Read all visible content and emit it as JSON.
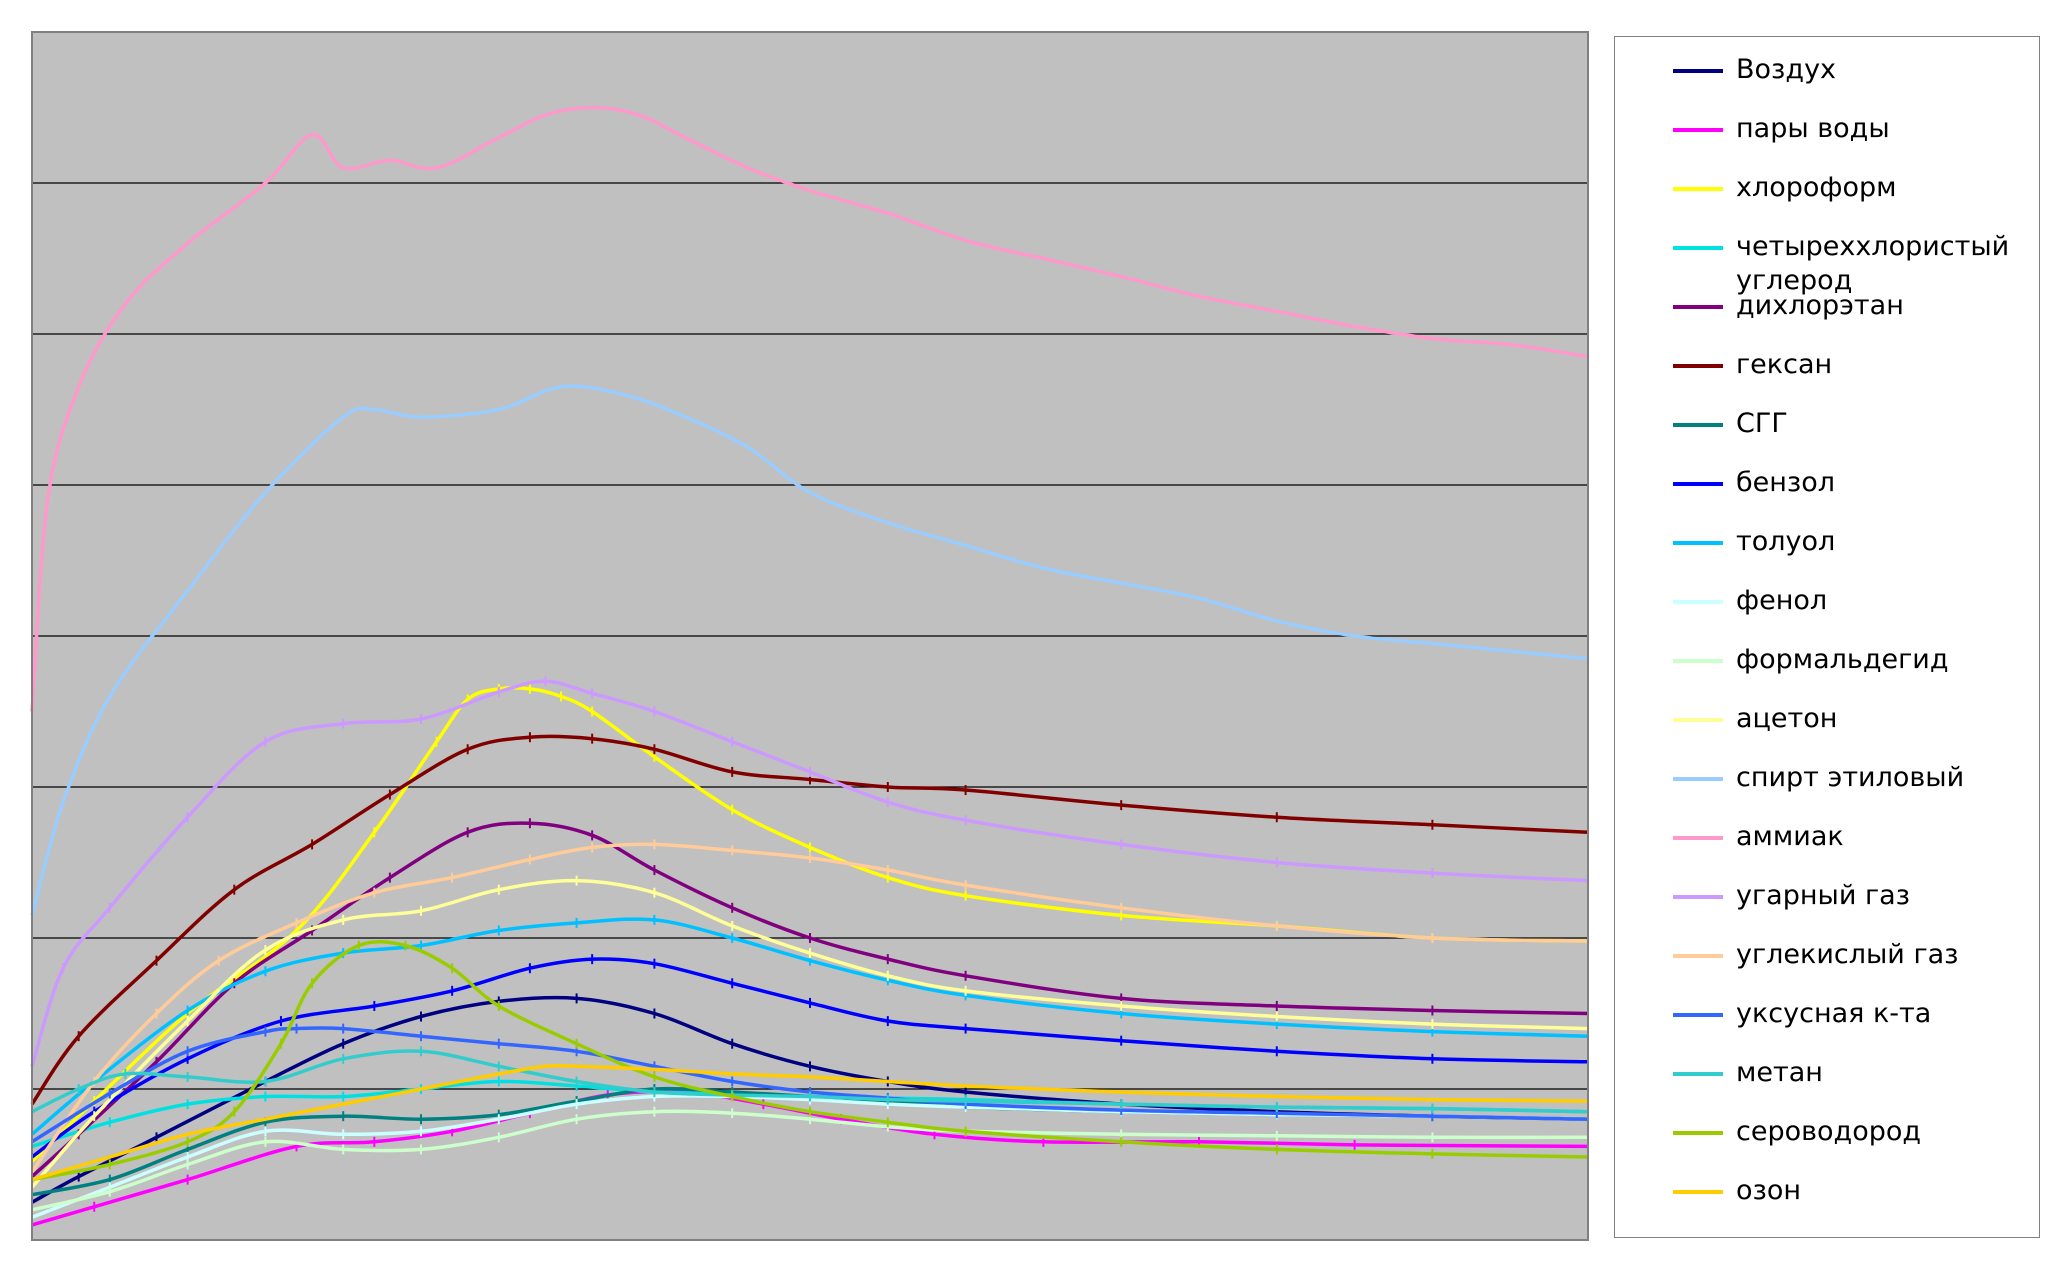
{
  "chart_data": {
    "type": "line",
    "title": "",
    "xlabel": "",
    "ylabel": "",
    "xlim": [
      0,
      100
    ],
    "ylim": [
      0,
      8
    ],
    "grid": true,
    "gridlines_y": [
      1,
      2,
      3,
      4,
      5,
      6,
      7
    ],
    "plot_background": "#c0c0c0",
    "axis_tick_labels_visible": false,
    "legend_position": "right",
    "series": [
      {
        "name": "Воздух",
        "color": "#000080",
        "markers": true,
        "x": [
          0,
          3,
          8,
          15,
          20,
          25,
          30,
          35,
          40,
          45,
          50,
          55,
          60,
          70,
          80,
          90,
          100
        ],
        "y": [
          0.25,
          0.42,
          0.68,
          1.05,
          1.3,
          1.48,
          1.58,
          1.6,
          1.5,
          1.3,
          1.15,
          1.05,
          0.98,
          0.9,
          0.85,
          0.82,
          0.8
        ]
      },
      {
        "name": "пары воды",
        "color": "#ff00ff",
        "markers": true,
        "x": [
          0,
          4,
          10,
          17,
          22,
          27,
          32,
          37,
          42,
          47,
          52,
          58,
          65,
          75,
          85,
          100
        ],
        "y": [
          0.1,
          0.22,
          0.4,
          0.62,
          0.65,
          0.72,
          0.84,
          0.96,
          0.98,
          0.9,
          0.8,
          0.7,
          0.65,
          0.65,
          0.63,
          0.62
        ]
      },
      {
        "name": "хлороформ",
        "color": "#ffff00",
        "markers": true,
        "x": [
          0,
          4,
          10,
          17,
          22,
          26,
          28,
          30,
          32,
          34,
          36,
          40,
          45,
          50,
          55,
          60,
          70,
          80,
          90,
          100
        ],
        "y": [
          0.52,
          0.92,
          1.5,
          2.05,
          2.7,
          3.3,
          3.58,
          3.65,
          3.65,
          3.6,
          3.5,
          3.2,
          2.85,
          2.6,
          2.4,
          2.28,
          2.15,
          2.08,
          2.0,
          1.98
        ]
      },
      {
        "name": "четыреххлористый углерод",
        "color": "#00e0e0",
        "markers": true,
        "x": [
          0,
          5,
          10,
          15,
          20,
          25,
          30,
          35,
          40,
          45,
          50,
          55,
          60,
          70,
          80,
          90,
          100
        ],
        "y": [
          0.62,
          0.78,
          0.9,
          0.95,
          0.95,
          1.0,
          1.05,
          1.02,
          0.98,
          0.97,
          0.95,
          0.94,
          0.93,
          0.9,
          0.88,
          0.87,
          0.85
        ]
      },
      {
        "name": "дихлорэтан",
        "color": "#800080",
        "markers": true,
        "x": [
          0,
          3,
          8,
          13,
          18,
          23,
          28,
          32,
          36,
          40,
          45,
          50,
          55,
          60,
          70,
          80,
          90,
          100
        ],
        "y": [
          0.42,
          0.7,
          1.18,
          1.7,
          2.05,
          2.4,
          2.7,
          2.76,
          2.68,
          2.45,
          2.2,
          2.0,
          1.86,
          1.75,
          1.6,
          1.55,
          1.52,
          1.5
        ]
      },
      {
        "name": "гексан",
        "color": "#800000",
        "markers": true,
        "x": [
          0,
          3,
          8,
          13,
          18,
          23,
          28,
          32,
          36,
          40,
          45,
          50,
          55,
          60,
          70,
          80,
          90,
          100
        ],
        "y": [
          0.9,
          1.35,
          1.85,
          2.32,
          2.62,
          2.95,
          3.25,
          3.33,
          3.32,
          3.25,
          3.1,
          3.05,
          3.0,
          2.98,
          2.88,
          2.8,
          2.75,
          2.7
        ]
      },
      {
        "name": "СГГ",
        "color": "#008080",
        "markers": true,
        "x": [
          0,
          5,
          10,
          15,
          20,
          25,
          30,
          35,
          40,
          45,
          50,
          55,
          60,
          70,
          80,
          90,
          100
        ],
        "y": [
          0.3,
          0.4,
          0.6,
          0.78,
          0.82,
          0.8,
          0.83,
          0.92,
          1.0,
          0.98,
          0.95,
          0.92,
          0.88,
          0.85,
          0.83,
          0.82,
          0.8
        ]
      },
      {
        "name": "бензол",
        "color": "#0000ff",
        "markers": true,
        "x": [
          0,
          4,
          10,
          16,
          22,
          27,
          32,
          36,
          40,
          45,
          50,
          55,
          60,
          70,
          80,
          90,
          100
        ],
        "y": [
          0.55,
          0.85,
          1.2,
          1.45,
          1.55,
          1.65,
          1.8,
          1.86,
          1.83,
          1.7,
          1.57,
          1.45,
          1.4,
          1.32,
          1.25,
          1.2,
          1.18
        ]
      },
      {
        "name": "толуол",
        "color": "#00c0ff",
        "markers": true,
        "x": [
          0,
          4,
          10,
          15,
          20,
          25,
          30,
          35,
          40,
          45,
          50,
          55,
          60,
          70,
          80,
          90,
          100
        ],
        "y": [
          0.7,
          1.05,
          1.52,
          1.78,
          1.9,
          1.95,
          2.05,
          2.1,
          2.12,
          2.0,
          1.85,
          1.72,
          1.62,
          1.5,
          1.43,
          1.38,
          1.35
        ]
      },
      {
        "name": "фенол",
        "color": "#ccffff",
        "markers": true,
        "x": [
          0,
          5,
          10,
          15,
          20,
          25,
          30,
          35,
          40,
          45,
          50,
          55,
          60,
          70,
          80,
          90,
          100
        ],
        "y": [
          0.15,
          0.35,
          0.55,
          0.72,
          0.7,
          0.72,
          0.8,
          0.9,
          0.95,
          0.95,
          0.93,
          0.9,
          0.88,
          0.85,
          0.83,
          0.82,
          0.8
        ]
      },
      {
        "name": "формальдегид",
        "color": "#ccffcc",
        "markers": true,
        "x": [
          0,
          5,
          10,
          15,
          20,
          25,
          30,
          35,
          40,
          45,
          50,
          55,
          60,
          70,
          80,
          90,
          100
        ],
        "y": [
          0.2,
          0.32,
          0.5,
          0.65,
          0.6,
          0.6,
          0.68,
          0.8,
          0.85,
          0.84,
          0.8,
          0.75,
          0.72,
          0.7,
          0.69,
          0.68,
          0.68
        ]
      },
      {
        "name": "ацетон",
        "color": "#ffff99",
        "markers": true,
        "x": [
          0,
          4,
          10,
          15,
          20,
          25,
          30,
          35,
          40,
          45,
          50,
          55,
          60,
          70,
          80,
          90,
          100
        ],
        "y": [
          0.35,
          0.82,
          1.45,
          1.92,
          2.12,
          2.18,
          2.32,
          2.38,
          2.3,
          2.08,
          1.9,
          1.75,
          1.65,
          1.55,
          1.48,
          1.43,
          1.4
        ]
      },
      {
        "name": "спирт этиловый",
        "color": "#99ccff",
        "markers": false,
        "x": [
          0,
          2,
          5,
          10,
          15,
          20,
          22,
          25,
          30,
          34,
          38,
          42,
          46,
          50,
          55,
          60,
          65,
          70,
          75,
          80,
          85,
          90,
          95,
          100
        ],
        "y": [
          2.15,
          2.9,
          3.6,
          4.3,
          4.95,
          5.45,
          5.5,
          5.45,
          5.5,
          5.65,
          5.6,
          5.45,
          5.25,
          4.95,
          4.75,
          4.6,
          4.45,
          4.35,
          4.25,
          4.1,
          4.0,
          3.95,
          3.9,
          3.85
        ]
      },
      {
        "name": "аммиак",
        "color": "#ff99cc",
        "markers": false,
        "x": [
          0,
          1,
          3,
          6,
          10,
          15,
          18,
          20,
          23,
          26,
          30,
          33,
          36,
          39,
          42,
          46,
          50,
          55,
          60,
          65,
          70,
          75,
          80,
          85,
          90,
          95,
          100
        ],
        "y": [
          3.5,
          4.9,
          5.65,
          6.2,
          6.6,
          7.0,
          7.32,
          7.1,
          7.15,
          7.1,
          7.3,
          7.45,
          7.5,
          7.45,
          7.3,
          7.1,
          6.95,
          6.8,
          6.62,
          6.5,
          6.38,
          6.25,
          6.15,
          6.05,
          5.97,
          5.93,
          5.85
        ]
      },
      {
        "name": "угарный газ",
        "color": "#cc99ff",
        "markers": true,
        "x": [
          0,
          2,
          5,
          10,
          15,
          20,
          25,
          30,
          33,
          36,
          40,
          45,
          50,
          55,
          60,
          70,
          80,
          90,
          100
        ],
        "y": [
          1.15,
          1.8,
          2.2,
          2.8,
          3.3,
          3.42,
          3.45,
          3.63,
          3.7,
          3.62,
          3.5,
          3.3,
          3.1,
          2.9,
          2.78,
          2.62,
          2.5,
          2.43,
          2.38
        ]
      },
      {
        "name": "углекислый газ",
        "color": "#ffcc99",
        "markers": true,
        "x": [
          0,
          4,
          8,
          12,
          17,
          22,
          27,
          32,
          36,
          40,
          45,
          50,
          55,
          60,
          70,
          80,
          90,
          100
        ],
        "y": [
          0.45,
          1.05,
          1.5,
          1.85,
          2.1,
          2.3,
          2.4,
          2.52,
          2.6,
          2.62,
          2.58,
          2.53,
          2.45,
          2.35,
          2.2,
          2.08,
          2.0,
          1.98
        ]
      },
      {
        "name": "уксусная к-та",
        "color": "#3366ff",
        "markers": true,
        "x": [
          0,
          5,
          10,
          15,
          17,
          20,
          25,
          30,
          35,
          40,
          45,
          50,
          55,
          60,
          70,
          80,
          90,
          100
        ],
        "y": [
          0.65,
          0.97,
          1.25,
          1.38,
          1.4,
          1.4,
          1.35,
          1.3,
          1.25,
          1.15,
          1.05,
          0.98,
          0.94,
          0.9,
          0.86,
          0.84,
          0.82,
          0.8
        ]
      },
      {
        "name": "метан",
        "color": "#33cccc",
        "markers": true,
        "x": [
          0,
          3,
          6,
          10,
          15,
          20,
          25,
          30,
          35,
          40,
          45,
          50,
          55,
          60,
          70,
          80,
          90,
          100
        ],
        "y": [
          0.85,
          1.0,
          1.1,
          1.08,
          1.05,
          1.2,
          1.25,
          1.15,
          1.05,
          0.98,
          0.96,
          0.95,
          0.93,
          0.92,
          0.9,
          0.88,
          0.87,
          0.85
        ]
      },
      {
        "name": "сероводород",
        "color": "#99cc00",
        "markers": true,
        "x": [
          0,
          5,
          10,
          13,
          16,
          18,
          21,
          24,
          27,
          30,
          35,
          40,
          45,
          50,
          55,
          60,
          70,
          80,
          90,
          100
        ],
        "y": [
          0.4,
          0.5,
          0.65,
          0.85,
          1.3,
          1.7,
          1.95,
          1.95,
          1.8,
          1.55,
          1.3,
          1.08,
          0.95,
          0.85,
          0.78,
          0.72,
          0.65,
          0.6,
          0.57,
          0.55
        ]
      },
      {
        "name": "озон",
        "color": "#ffcc00",
        "markers": false,
        "x": [
          0,
          5,
          10,
          15,
          20,
          25,
          30,
          33,
          35,
          40,
          45,
          50,
          55,
          60,
          70,
          80,
          90,
          100
        ],
        "y": [
          0.4,
          0.55,
          0.7,
          0.8,
          0.9,
          1.0,
          1.1,
          1.15,
          1.15,
          1.13,
          1.1,
          1.08,
          1.05,
          1.02,
          0.98,
          0.95,
          0.93,
          0.92
        ]
      }
    ]
  }
}
